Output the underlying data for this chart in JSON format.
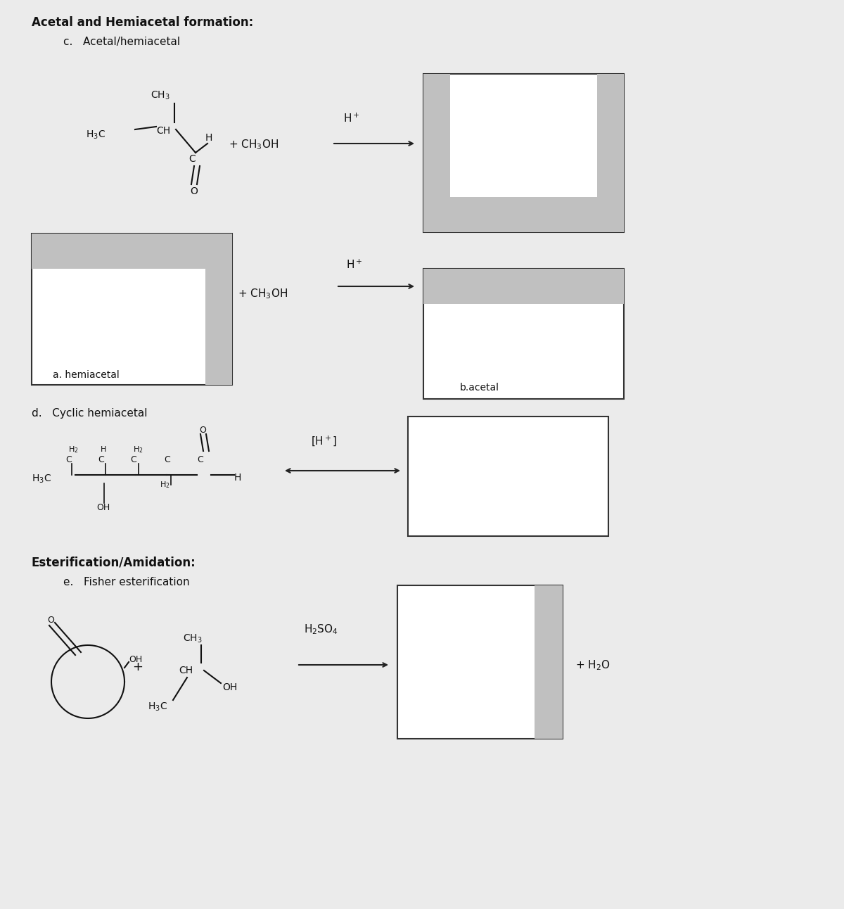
{
  "bg_color": "#ebebeb",
  "title": "Acetal and Hemiacetal formation:",
  "subtitle": "c.   Acetal/hemiacetal",
  "section2_title": "Esterification/Amidation:",
  "section2_sub": "e.   Fisher esterification",
  "box_color": "#c0c0c0",
  "box_edge": "#333333",
  "arrow_color": "#222222",
  "text_color": "#111111",
  "title_fontsize": 12,
  "subtitle_fontsize": 11,
  "body_fontsize": 11,
  "small_fontsize": 10,
  "tiny_fontsize": 9
}
